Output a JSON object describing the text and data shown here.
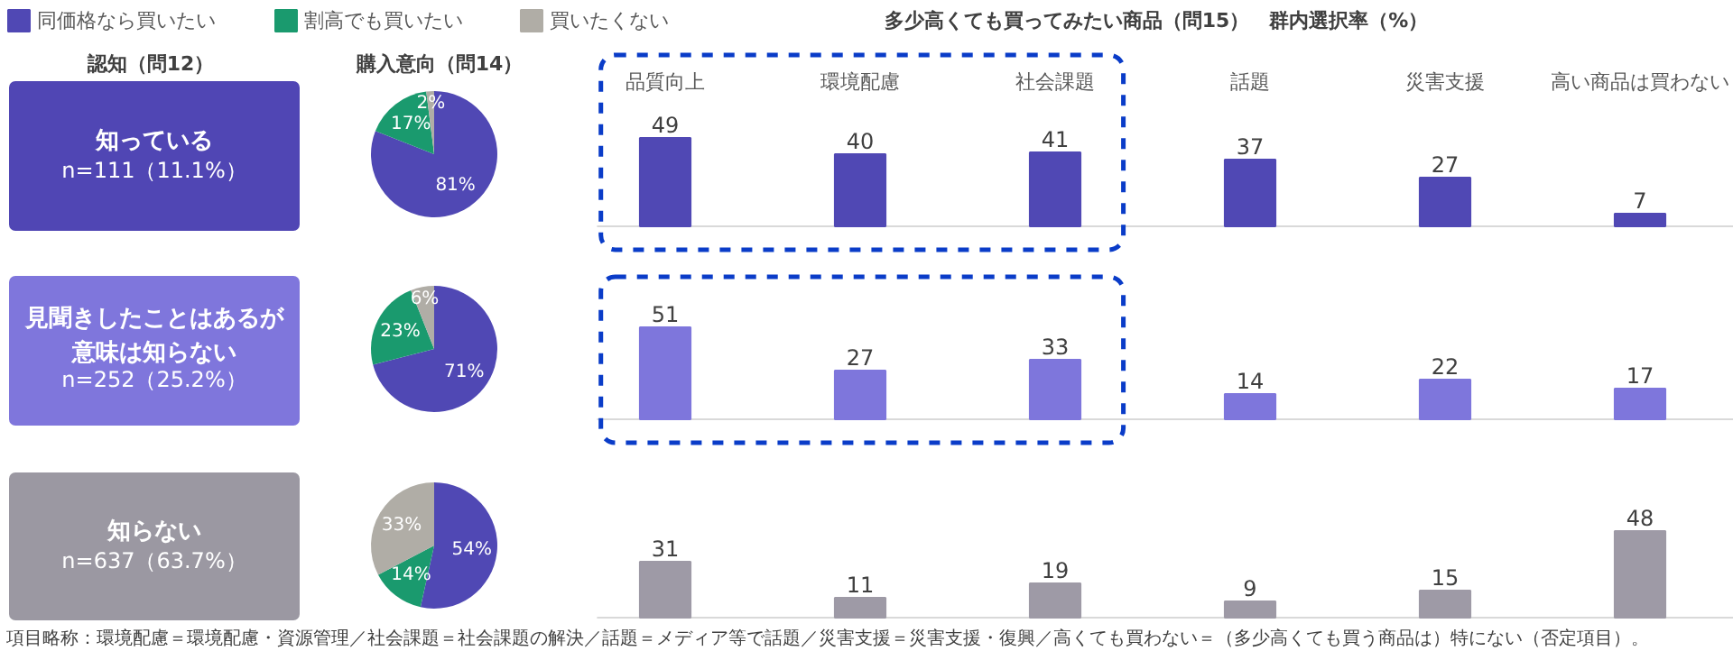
{
  "chart_data": [
    {
      "type": "other",
      "title": "認知（問12）",
      "annotations": [
        "知っている",
        "n=111（11.1%）"
      ],
      "colors": [
        "#5046b4"
      ]
    },
    {
      "type": "pie",
      "title": "購入意向（問14）",
      "categories": [
        "同価格なら買いたい",
        "割高でも買いたい",
        "買いたくない"
      ],
      "values": [
        81,
        17,
        2
      ],
      "colors": [
        "#5048b4",
        "#1a9a6e",
        "#b0ada6"
      ],
      "value_labels": [
        "81%",
        "17%",
        "2%"
      ],
      "legend": "top"
    },
    {
      "type": "bar",
      "title": "多少高くても買ってみたい商品（問15）　群内選択率（%）",
      "categories": [
        "品質向上",
        "環境配慮",
        "社会課題",
        "話題",
        "災害支援",
        "高い商品は買わない"
      ],
      "values": [
        49,
        40,
        41,
        37,
        27,
        7
      ],
      "color": "#5048b4",
      "data_labels": true,
      "tick_labels": "x"
    },
    {
      "type": "other",
      "annotations": [
        "見聞きしたことはあるが意味は知らない",
        "n=252（25.2%）"
      ],
      "colors": [
        "#7f76dc"
      ]
    },
    {
      "type": "pie",
      "values": [
        71,
        23,
        6
      ],
      "colors": [
        "#5048b4",
        "#1a9a6e",
        "#b0ada6"
      ],
      "value_labels": [
        "71%",
        "23%",
        "6%"
      ]
    },
    {
      "type": "bar",
      "categories": [
        null,
        null,
        null,
        null,
        null,
        null
      ],
      "values": [
        51,
        27,
        33,
        14,
        22,
        17
      ],
      "color": "#7e76dc",
      "data_labels": true
    },
    {
      "type": "other",
      "annotations": [
        "知らない",
        "n=637（63.7%）"
      ],
      "colors": [
        "#9b98a2"
      ]
    },
    {
      "type": "pie",
      "values": [
        54,
        14,
        33
      ],
      "colors": [
        "#5048b4",
        "#1a9a6e",
        "#b0ada6"
      ],
      "value_labels": [
        "54%",
        "14%",
        "33%"
      ]
    },
    {
      "type": "bar",
      "categories": [
        null,
        null,
        null,
        null,
        null,
        null
      ],
      "values": [
        31,
        11,
        19,
        9,
        15,
        48
      ],
      "color": "#9e9aa6",
      "data_labels": true,
      "annotations": [
        "項目略称：環境配慮＝環境配慮・資源管理／社会課題＝社会課題の解決／話題＝メディア等で話題／災害支援＝災害支援・復興／高くても買わない＝（多少高くても買う商品は）特にない（否定項目）。"
      ]
    }
  ]
}
